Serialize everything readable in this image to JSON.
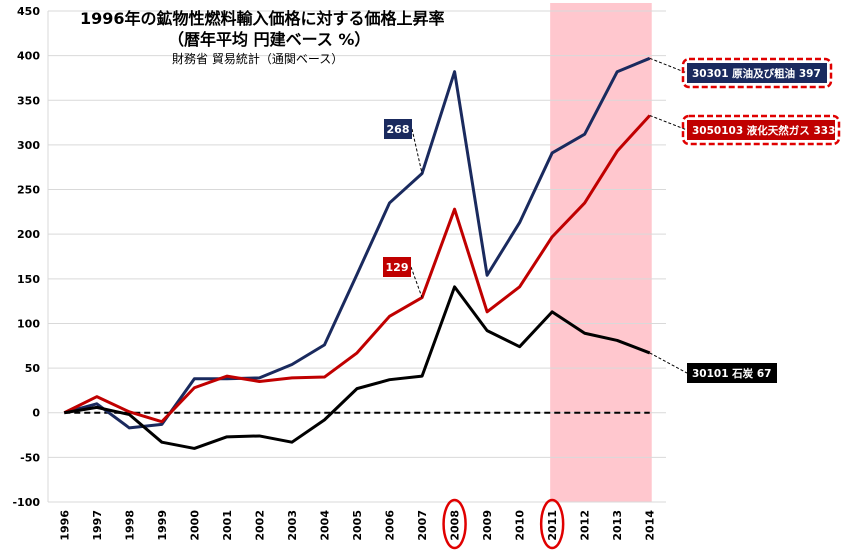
{
  "chart_data": {
    "type": "line",
    "title": "1996年の鉱物性燃料輸入価格に対する価格上昇率",
    "subtitle": "（暦年平均 円建ベース %）",
    "source": "財務省 貿易統計（通関ベース）",
    "categories": [
      "1996",
      "1997",
      "1998",
      "1999",
      "2000",
      "2001",
      "2002",
      "2003",
      "2004",
      "2005",
      "2006",
      "2007",
      "2008",
      "2009",
      "2010",
      "2011",
      "2012",
      "2013",
      "2014"
    ],
    "ylim": [
      -100,
      450
    ],
    "yticks": [
      -100,
      -50,
      0,
      50,
      100,
      150,
      200,
      250,
      300,
      350,
      400,
      450
    ],
    "grid": true,
    "highlight_range": [
      "2011",
      "2014"
    ],
    "circled_categories": [
      "2008",
      "2011"
    ],
    "series": [
      {
        "name": "30301 原油及び粗油",
        "end_label": "30301 原油及び粗油 397",
        "color": "#1a2a5e",
        "values": [
          0,
          10,
          -17,
          -13,
          38,
          38,
          39,
          54,
          76,
          155,
          235,
          268,
          382,
          154,
          213,
          291,
          312,
          382,
          397
        ],
        "callout": {
          "category": "2007",
          "text": "268"
        },
        "end_box_dashed": true
      },
      {
        "name": "3050103 液化天然ガス",
        "end_label": "3050103 液化天然ガス 333",
        "color": "#c00000",
        "values": [
          0,
          18,
          1,
          -10,
          28,
          41,
          35,
          39,
          40,
          67,
          108,
          129,
          228,
          113,
          141,
          197,
          235,
          293,
          333
        ],
        "callout": {
          "category": "2007",
          "text": "129"
        },
        "end_box_dashed": true
      },
      {
        "name": "30101 石炭",
        "end_label": "30101 石炭 67",
        "color": "#000000",
        "values": [
          0,
          6,
          -2,
          -33,
          -40,
          -27,
          -26,
          -33,
          -8,
          27,
          37,
          41,
          141,
          92,
          74,
          113,
          89,
          81,
          67
        ],
        "end_box_dashed": false
      }
    ],
    "zero_line": {
      "y": 0,
      "style": "dashed"
    }
  }
}
